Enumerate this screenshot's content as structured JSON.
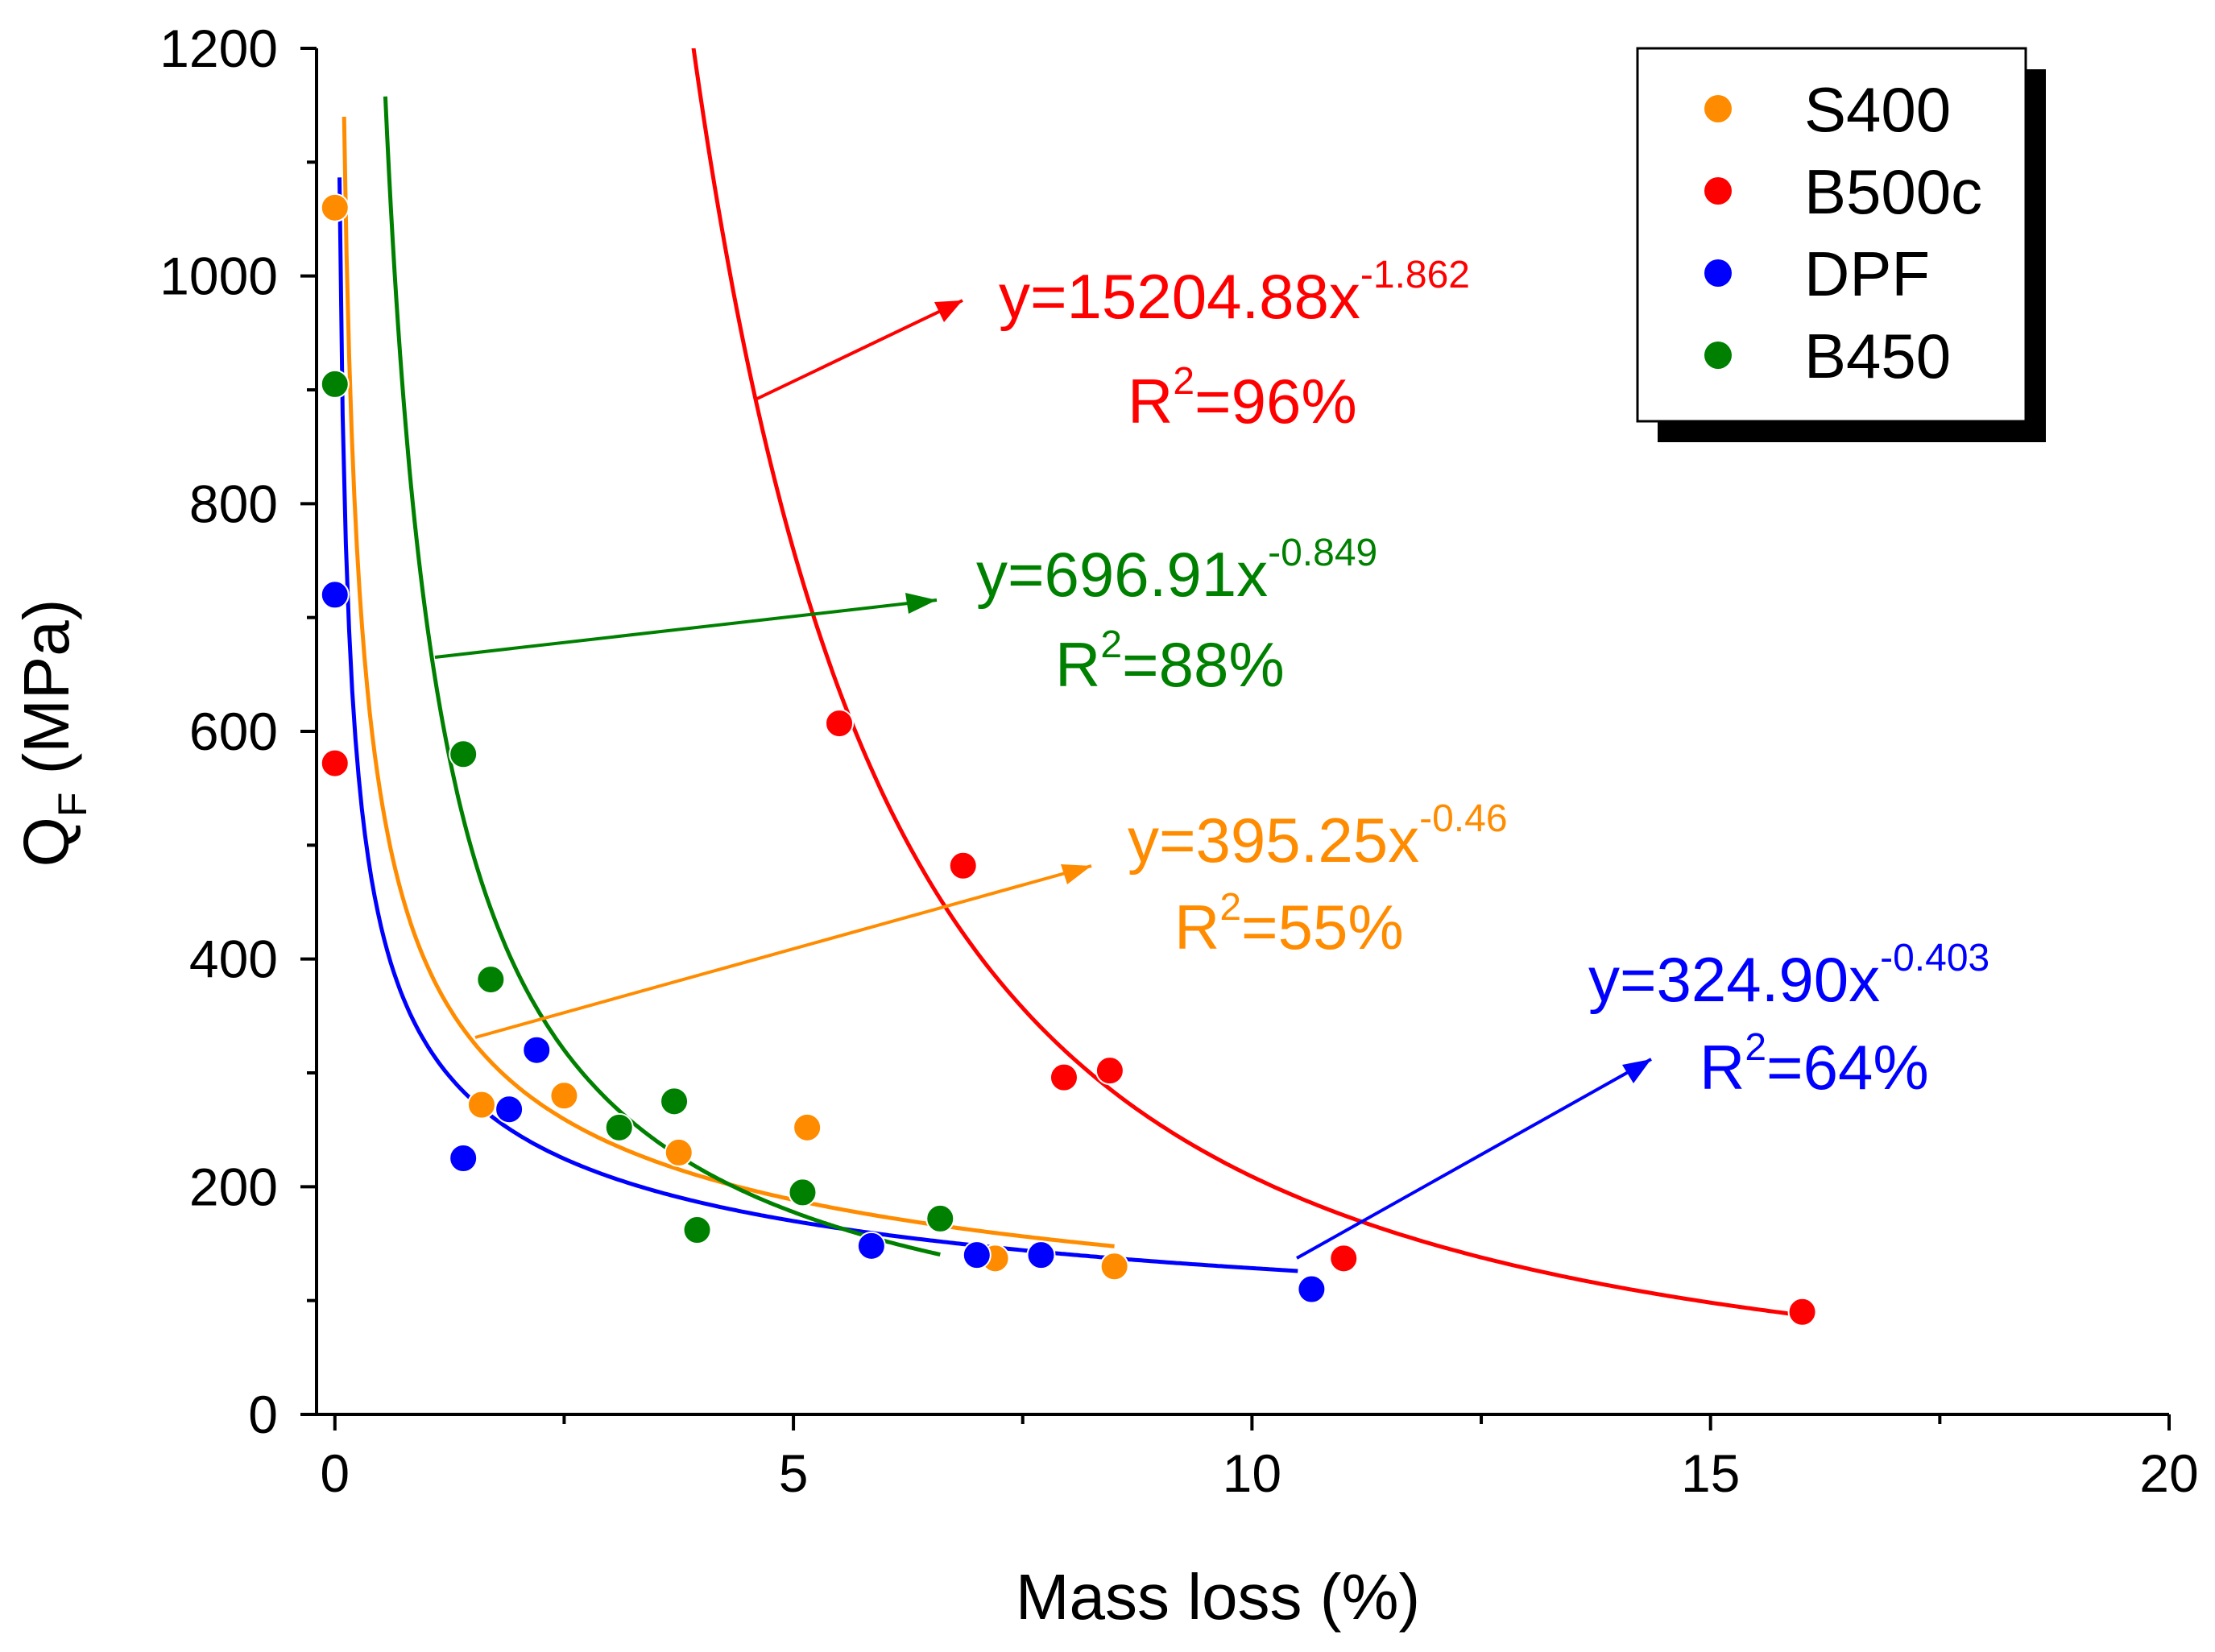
{
  "chart_data": {
    "type": "scatter",
    "title": "",
    "xlabel": "Mass loss (%)",
    "ylabel": {
      "main": "Q",
      "sub": "F",
      "unit": " (MPa)"
    },
    "xlim": [
      -0.2,
      20
    ],
    "ylim": [
      0,
      1200
    ],
    "xticks": [
      0,
      5,
      10,
      15,
      20
    ],
    "yticks": [
      0,
      200,
      400,
      600,
      800,
      1000,
      1200
    ],
    "legend_position": "top-right",
    "series": [
      {
        "name": "S400",
        "color": "#ff8c00",
        "points": [
          [
            0.0,
            1060
          ],
          [
            1.6,
            272
          ],
          [
            2.5,
            280
          ],
          [
            3.75,
            230
          ],
          [
            5.15,
            252
          ],
          [
            7.2,
            137
          ],
          [
            8.5,
            130
          ]
        ],
        "fit": {
          "a": 395.25,
          "b": -0.46,
          "x_range": [
            0.1,
            8.5
          ],
          "equation": "y=395.25x",
          "exponent": "-0.46",
          "r2": "=55%"
        }
      },
      {
        "name": "B500c",
        "color": "#ff0000",
        "points": [
          [
            0.0,
            572
          ],
          [
            5.5,
            607
          ],
          [
            6.85,
            482
          ],
          [
            7.95,
            296
          ],
          [
            8.45,
            302
          ],
          [
            11.0,
            137
          ],
          [
            16.0,
            90
          ]
        ],
        "fit": {
          "a": 15204.88,
          "b": -1.862,
          "x_range": [
            3.9,
            16.0
          ],
          "equation": "y=15204.88x",
          "exponent": "-1.862",
          "r2": "=96%"
        }
      },
      {
        "name": "DPF",
        "color": "#0000ff",
        "points": [
          [
            0.0,
            720
          ],
          [
            1.4,
            225
          ],
          [
            1.9,
            268
          ],
          [
            2.2,
            320
          ],
          [
            5.85,
            148
          ],
          [
            7.0,
            140
          ],
          [
            7.7,
            140
          ],
          [
            10.65,
            110
          ]
        ],
        "fit": {
          "a": 324.9,
          "b": -0.403,
          "x_range": [
            0.05,
            10.5
          ],
          "equation": "y=324.90x",
          "exponent": "-0.403",
          "r2": "=64%"
        }
      },
      {
        "name": "B450",
        "color": "#008000",
        "points": [
          [
            0.0,
            905
          ],
          [
            1.4,
            580
          ],
          [
            1.7,
            382
          ],
          [
            3.1,
            252
          ],
          [
            3.7,
            275
          ],
          [
            3.95,
            162
          ],
          [
            5.1,
            195
          ],
          [
            6.6,
            172
          ]
        ],
        "fit": {
          "a": 696.91,
          "b": -0.849,
          "x_range": [
            0.55,
            6.6
          ],
          "equation": "y=696.91x",
          "exponent": "-0.849",
          "r2": "=88%"
        }
      }
    ]
  }
}
